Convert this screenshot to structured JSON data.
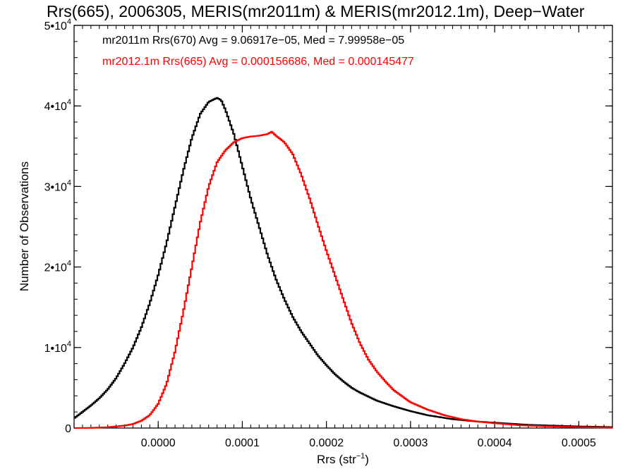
{
  "chart_data": {
    "type": "histogram-step",
    "title": "Rrs(665), 2006305, MERIS(mr2011m) & MERIS(mr2012.1m), Deep−Water",
    "xlabel": "Rrs (str",
    "xlabel_sup": "−1",
    "xlabel_close": ")",
    "ylabel": "Number of Observations",
    "xlim": [
      -0.0001,
      0.00054
    ],
    "ylim": [
      0,
      50000
    ],
    "x_ticks": [
      {
        "value": 0.0,
        "label": "0.0000"
      },
      {
        "value": 0.0001,
        "label": "0.0001"
      },
      {
        "value": 0.0002,
        "label": "0.0002"
      },
      {
        "value": 0.0003,
        "label": "0.0003"
      },
      {
        "value": 0.0004,
        "label": "0.0004"
      },
      {
        "value": 0.0005,
        "label": "0.0005"
      }
    ],
    "y_ticks": [
      {
        "value": 0,
        "mant": "0",
        "exp": ""
      },
      {
        "value": 10000,
        "mant": "1•10",
        "exp": "4"
      },
      {
        "value": 20000,
        "mant": "2•10",
        "exp": "4"
      },
      {
        "value": 30000,
        "mant": "3•10",
        "exp": "4"
      },
      {
        "value": 40000,
        "mant": "4•10",
        "exp": "4"
      },
      {
        "value": 50000,
        "mant": "5•10",
        "exp": "4"
      }
    ],
    "annotations": [
      {
        "text": "mr2011m Rrs(670) Avg = 9.06917e−05, Med = 7.99958e−05",
        "color": "#000000"
      },
      {
        "text": "mr2012.1m Rrs(665) Avg = 0.000156686, Med = 0.000145477",
        "color": "#ff0000"
      }
    ],
    "series": [
      {
        "color": "#000000",
        "x": [
          -0.0001,
          -9e-05,
          -8e-05,
          -7e-05,
          -6e-05,
          -5e-05,
          -4e-05,
          -3e-05,
          -2e-05,
          -1e-05,
          0.0,
          1e-05,
          2e-05,
          3e-05,
          4e-05,
          5e-05,
          6e-05,
          7e-05,
          7.5e-05,
          8e-05,
          9e-05,
          0.0001,
          0.00011,
          0.00012,
          0.00013,
          0.00014,
          0.00015,
          0.00016,
          0.00017,
          0.00018,
          0.00019,
          0.0002,
          0.00021,
          0.00022,
          0.00023,
          0.00024,
          0.00026,
          0.00028,
          0.0003,
          0.00032,
          0.00035,
          0.00038,
          0.00041,
          0.00044,
          0.00047,
          0.0005,
          0.00054
        ],
        "y": [
          1200,
          2000,
          2800,
          3700,
          4800,
          6200,
          8000,
          10000,
          12500,
          15500,
          19000,
          23000,
          27500,
          32000,
          36000,
          39000,
          40500,
          41000,
          40700,
          39500,
          36500,
          32500,
          28500,
          25000,
          21500,
          18500,
          16000,
          13800,
          12000,
          10500,
          9000,
          7800,
          6700,
          5800,
          5000,
          4400,
          3400,
          2700,
          2100,
          1600,
          1100,
          800,
          600,
          400,
          300,
          200,
          120
        ]
      },
      {
        "color": "#ff0000",
        "x": [
          -0.0001,
          -8e-05,
          -6e-05,
          -4e-05,
          -3e-05,
          -2e-05,
          -1e-05,
          0.0,
          1e-05,
          2e-05,
          3e-05,
          4e-05,
          5e-05,
          6e-05,
          7e-05,
          8e-05,
          9e-05,
          0.0001,
          0.00011,
          0.00012,
          0.00013,
          0.000135,
          0.00014,
          0.00015,
          0.00016,
          0.00017,
          0.00018,
          0.00019,
          0.0002,
          0.00021,
          0.00022,
          0.00023,
          0.00024,
          0.00025,
          0.00026,
          0.00027,
          0.00028,
          0.0003,
          0.00032,
          0.00034,
          0.00036,
          0.00038,
          0.0004,
          0.00043,
          0.00046,
          0.0005,
          0.00054
        ],
        "y": [
          0,
          20,
          100,
          300,
          500,
          900,
          1600,
          3000,
          5500,
          9500,
          14500,
          20000,
          25500,
          30000,
          33000,
          34500,
          35500,
          36000,
          36200,
          36300,
          36500,
          36800,
          36300,
          35500,
          34000,
          31500,
          28500,
          25200,
          22000,
          19000,
          16000,
          13000,
          10500,
          8500,
          7000,
          5800,
          4700,
          3200,
          2300,
          1600,
          1100,
          800,
          600,
          350,
          220,
          120,
          50
        ]
      }
    ]
  }
}
